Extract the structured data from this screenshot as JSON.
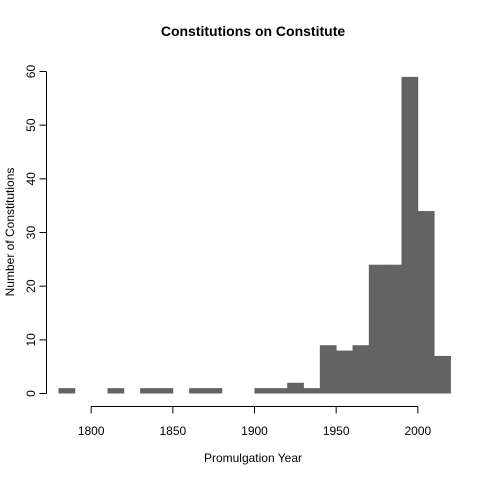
{
  "chart_data": {
    "type": "bar",
    "title": "Constitutions on Constitute",
    "xlabel": "Promulgation Year",
    "ylabel": "Number of Constitutions",
    "x_ticks": [
      "1800",
      "1850",
      "1900",
      "1950",
      "2000"
    ],
    "y_ticks": [
      "0",
      "10",
      "20",
      "30",
      "40",
      "50",
      "60"
    ],
    "xlim": [
      1780,
      2020
    ],
    "ylim": [
      0,
      60
    ],
    "bins": [
      {
        "start": 1780,
        "end": 1790,
        "value": 1
      },
      {
        "start": 1790,
        "end": 1800,
        "value": 0
      },
      {
        "start": 1800,
        "end": 1810,
        "value": 0
      },
      {
        "start": 1810,
        "end": 1820,
        "value": 1
      },
      {
        "start": 1820,
        "end": 1830,
        "value": 0
      },
      {
        "start": 1830,
        "end": 1840,
        "value": 1
      },
      {
        "start": 1840,
        "end": 1850,
        "value": 1
      },
      {
        "start": 1850,
        "end": 1860,
        "value": 0
      },
      {
        "start": 1860,
        "end": 1870,
        "value": 1
      },
      {
        "start": 1870,
        "end": 1880,
        "value": 1
      },
      {
        "start": 1880,
        "end": 1890,
        "value": 0
      },
      {
        "start": 1890,
        "end": 1900,
        "value": 0
      },
      {
        "start": 1900,
        "end": 1910,
        "value": 1
      },
      {
        "start": 1910,
        "end": 1920,
        "value": 1
      },
      {
        "start": 1920,
        "end": 1930,
        "value": 2
      },
      {
        "start": 1930,
        "end": 1940,
        "value": 1
      },
      {
        "start": 1940,
        "end": 1950,
        "value": 9
      },
      {
        "start": 1950,
        "end": 1960,
        "value": 8
      },
      {
        "start": 1960,
        "end": 1970,
        "value": 9
      },
      {
        "start": 1970,
        "end": 1980,
        "value": 24
      },
      {
        "start": 1980,
        "end": 1990,
        "value": 24
      },
      {
        "start": 1990,
        "end": 2000,
        "value": 59
      },
      {
        "start": 2000,
        "end": 2010,
        "value": 34
      },
      {
        "start": 2010,
        "end": 2020,
        "value": 7
      }
    ],
    "bar_color": "#636363",
    "grid": false,
    "legend": "none"
  }
}
